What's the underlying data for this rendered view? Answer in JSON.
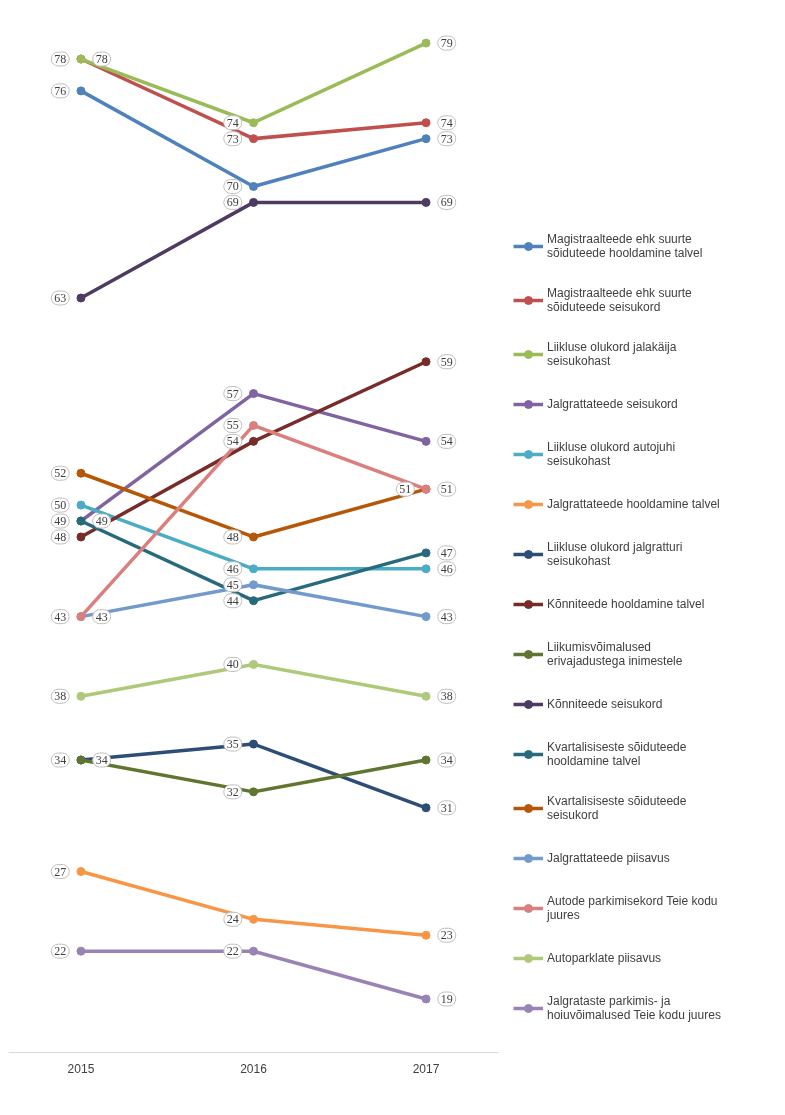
{
  "chart_data": {
    "type": "line",
    "categories": [
      "2015",
      "2016",
      "2017"
    ],
    "data_labels": true,
    "legend": "right",
    "marker": "circle",
    "grid": false,
    "line_style": "solid",
    "series": [
      {
        "name": "Magistraalteede ehk suurte sõiduteede hooldamine talvel",
        "color": "#4f81bd",
        "values": [
          76,
          70,
          73
        ]
      },
      {
        "name": "Magistraalteede ehk suurte sõiduteede seisukord",
        "color": "#c0504d",
        "values": [
          78,
          73,
          74
        ]
      },
      {
        "name": "Liikluse olukord jalakäija seisukohast",
        "color": "#9bbb59",
        "values": [
          78,
          74,
          79
        ]
      },
      {
        "name": "Jalgrattateede seisukord",
        "color": "#8064a2",
        "values": [
          49,
          57,
          54
        ]
      },
      {
        "name": "Liikluse olukord autojuhi seisukohast",
        "color": "#4bacc6",
        "values": [
          50,
          46,
          46
        ]
      },
      {
        "name": "Jalgrattateede hooldamine talvel",
        "color": "#f79646",
        "values": [
          27,
          24,
          23
        ]
      },
      {
        "name": "Liikluse olukord jalgratturi seisukohast",
        "color": "#2c4d75",
        "values": [
          34,
          35,
          31
        ]
      },
      {
        "name": "Kõnniteede hooldamine talvel",
        "color": "#772c2a",
        "values": [
          48,
          54,
          59
        ]
      },
      {
        "name": "Liikumisvõimalused erivajadustega inimestele",
        "color": "#5f7530",
        "values": [
          34,
          32,
          34
        ]
      },
      {
        "name": "Kõnniteede seisukord",
        "color": "#4d3b62",
        "values": [
          63,
          69,
          69
        ]
      },
      {
        "name": "Kvartalisiseste sõiduteede hooldamine talvel",
        "color": "#276a7c",
        "values": [
          49,
          44,
          47
        ]
      },
      {
        "name": "Kvartalisiseste sõiduteede seisukord",
        "color": "#b65708",
        "values": [
          52,
          48,
          51
        ]
      },
      {
        "name": "Jalgrattateede piisavus",
        "color": "#729aca",
        "values": [
          43,
          45,
          43
        ]
      },
      {
        "name": "Autode parkimisekord Teie kodu juures",
        "color": "#d9807e",
        "values": [
          43,
          55,
          51
        ]
      },
      {
        "name": "Autoparklate piisavus",
        "color": "#afc97a",
        "values": [
          38,
          40,
          38
        ]
      },
      {
        "name": "Jalgrataste parkimis- ja hoiuvõimalused Teie kodu juures",
        "color": "#9983b5",
        "values": [
          22,
          22,
          19
        ]
      }
    ]
  }
}
